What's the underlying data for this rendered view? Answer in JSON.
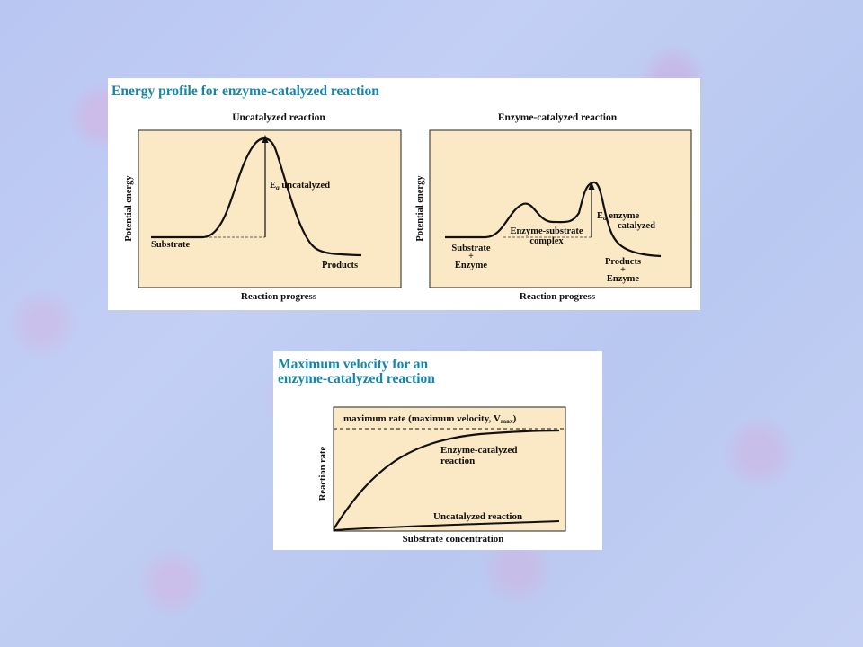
{
  "energy_panel": {
    "title": "Energy profile for enzyme-catalyzed reaction",
    "uncatalyzed": {
      "subtitle": "Uncatalyzed reaction",
      "ylabel": "Potential energy",
      "xlabel": "Reaction progress",
      "ea_prefix": "E",
      "ea_sub": "a",
      "ea_suffix": " uncatalyzed",
      "substrate_label": "Substrate",
      "products_label": "Products"
    },
    "catalyzed": {
      "subtitle": "Enzyme-catalyzed reaction",
      "ylabel": "Potential energy",
      "xlabel": "Reaction progress",
      "ea_prefix": "E",
      "ea_sub": "a",
      "ea_suffix": " enzyme",
      "ea_line2": "catalyzed",
      "substrate_line1": "Substrate",
      "substrate_line2": "+",
      "substrate_line3": "Enzyme",
      "complex_line1": "Enzyme-substrate",
      "complex_line2": "complex",
      "products_line1": "Products",
      "products_line2": "+",
      "products_line3": "Enzyme"
    }
  },
  "velocity_panel": {
    "title_line1": "Maximum velocity for an",
    "title_line2": "enzyme-catalyzed reaction",
    "vmax_label": "maximum rate (maximum velocity, V",
    "vmax_sub": "max",
    "vmax_close": ")",
    "catalyzed_line1": "Enzyme-catalyzed",
    "catalyzed_line2": "reaction",
    "uncatalyzed_label": "Uncatalyzed reaction",
    "ylabel": "Reaction rate",
    "xlabel": "Substrate concentration"
  },
  "colors": {
    "plot_fill": "#fbe8c4",
    "title": "#1686a8",
    "ink": "#111111"
  }
}
